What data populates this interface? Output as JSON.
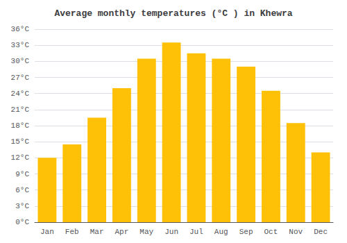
{
  "chart_data": {
    "type": "bar",
    "title": "Average monthly temperatures (°C ) in Khewra",
    "categories": [
      "Jan",
      "Feb",
      "Mar",
      "Apr",
      "May",
      "Jun",
      "Jul",
      "Aug",
      "Sep",
      "Oct",
      "Nov",
      "Dec"
    ],
    "values": [
      12.0,
      14.5,
      19.5,
      25.0,
      30.5,
      33.5,
      31.5,
      30.5,
      29.0,
      24.5,
      18.5,
      13.0
    ],
    "color": "#FFC107",
    "ylim": [
      0,
      36
    ],
    "yticks": [
      {
        "value": 0,
        "label": "0°C"
      },
      {
        "value": 3,
        "label": "3°C"
      },
      {
        "value": 6,
        "label": "6°C"
      },
      {
        "value": 9,
        "label": "9°C"
      },
      {
        "value": 12,
        "label": "12°C"
      },
      {
        "value": 15,
        "label": "15°C"
      },
      {
        "value": 18,
        "label": "18°C"
      },
      {
        "value": 21,
        "label": "21°C"
      },
      {
        "value": 24,
        "label": "24°C"
      },
      {
        "value": 27,
        "label": "27°C"
      },
      {
        "value": 30,
        "label": "30°C"
      },
      {
        "value": 33,
        "label": "33°C"
      },
      {
        "value": 36,
        "label": "36°C"
      }
    ],
    "grid": true
  }
}
